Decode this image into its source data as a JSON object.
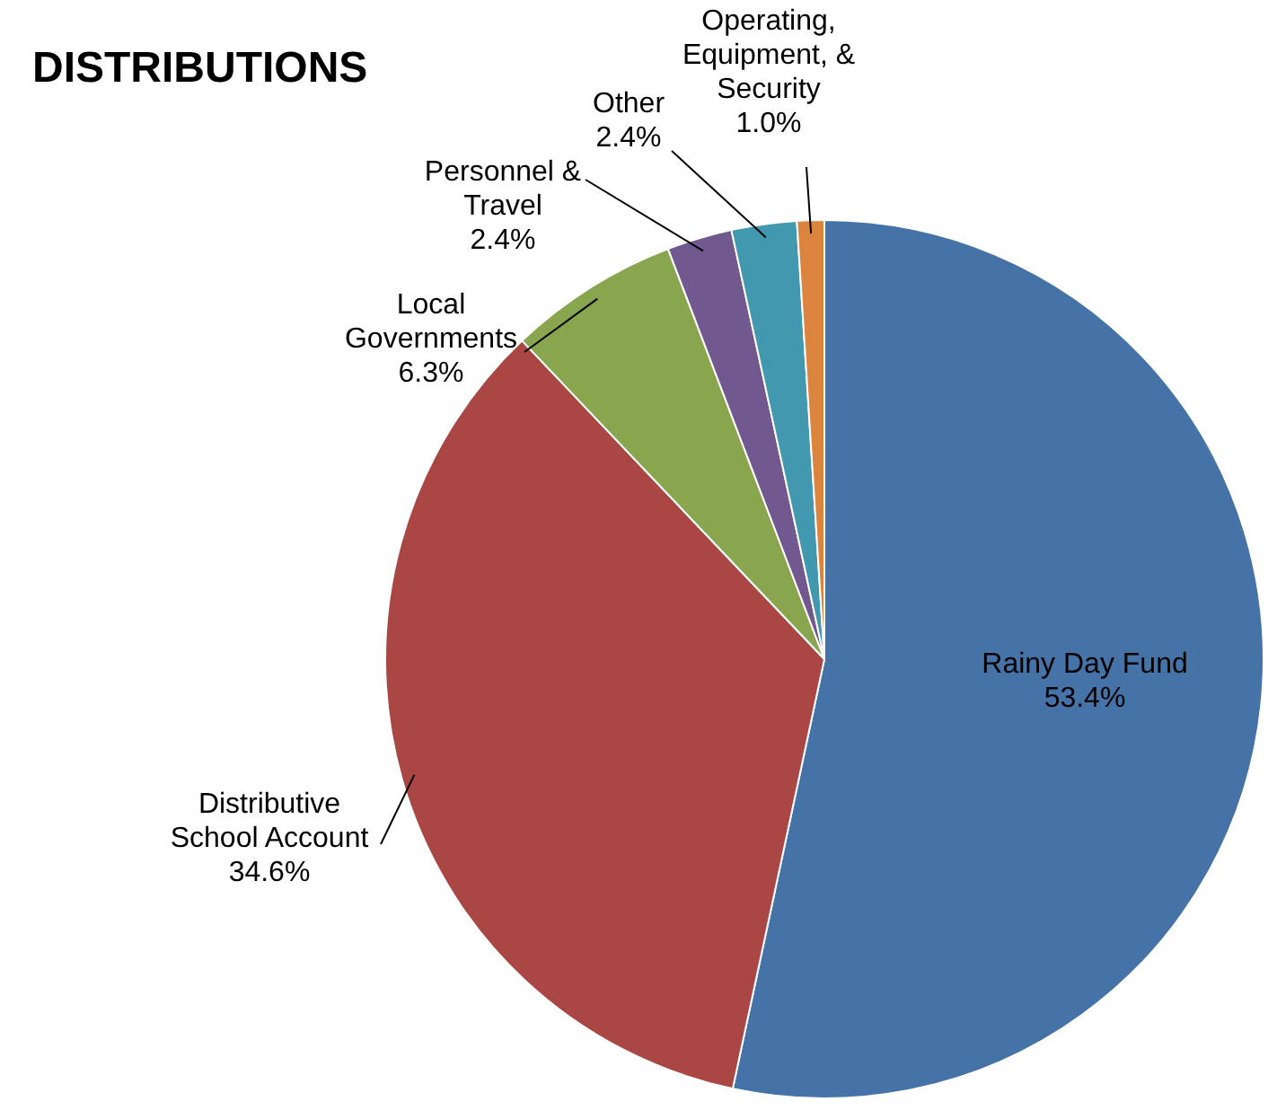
{
  "chart_data": {
    "type": "pie",
    "title": "DISTRIBUTIONS",
    "categories": [
      "Rainy Day Fund",
      "Distributive School Account",
      "Local Governments",
      "Personnel & Travel",
      "Other",
      "Operating, Equipment, & Security"
    ],
    "values": [
      53.4,
      34.6,
      6.3,
      2.4,
      2.4,
      1.0
    ],
    "value_labels": [
      "53.4%",
      "34.6%",
      "6.3%",
      "2.4%",
      "2.4%",
      "1.0%"
    ],
    "colors": [
      "#4572a7",
      "#aa4643",
      "#89a54e",
      "#71588f",
      "#4198af",
      "#db843d"
    ],
    "legend": false
  }
}
